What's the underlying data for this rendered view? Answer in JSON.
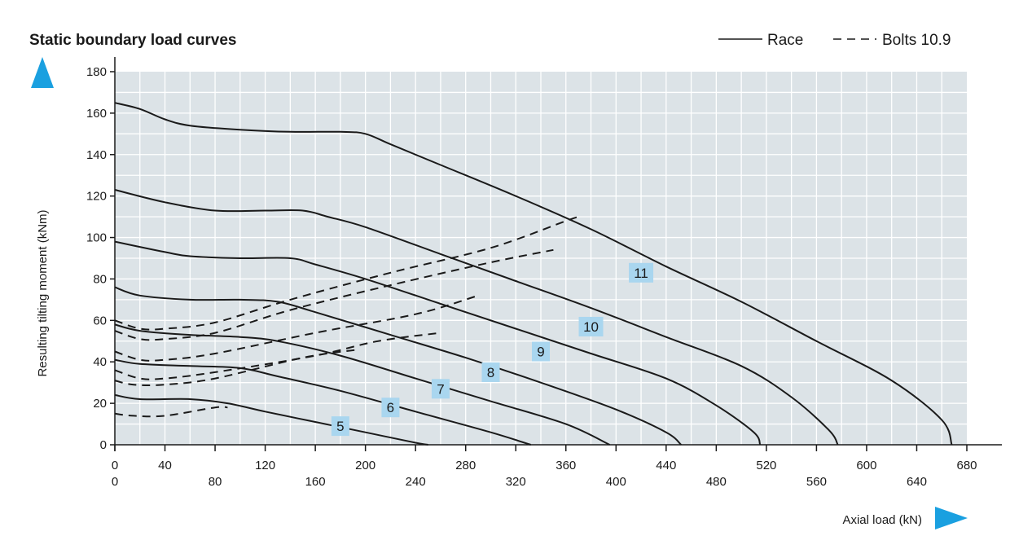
{
  "chart_data": {
    "type": "line",
    "title": "Static boundary load curves",
    "xlabel": "Axial load (kN)",
    "ylabel": "Resulting tilting moment (kNm)",
    "xlim": [
      0,
      680
    ],
    "ylim": [
      0,
      180
    ],
    "x_ticks_upper": [
      0,
      40,
      120,
      200,
      280,
      360,
      440,
      520,
      600,
      680
    ],
    "x_ticks_lower": [
      0,
      80,
      160,
      240,
      320,
      400,
      480,
      560,
      640
    ],
    "y_ticks": [
      0,
      20,
      40,
      60,
      80,
      100,
      120,
      140,
      160,
      180
    ],
    "grid": true,
    "legend_position": "top-right",
    "legend": [
      {
        "label": "Race",
        "style": "solid"
      },
      {
        "label": "Bolts 10.9",
        "style": "dashed"
      }
    ],
    "colors": {
      "plot_bg": "#dce3e7",
      "grid": "#ffffff",
      "line": "#1a1a1a",
      "accent": "#1aa0e0",
      "label_bg": "#a9d6ef"
    },
    "race_curves": [
      {
        "name": "5",
        "label_at": [
          180,
          9
        ],
        "points": [
          [
            0,
            24
          ],
          [
            20,
            22
          ],
          [
            60,
            22
          ],
          [
            90,
            20
          ],
          [
            120,
            16
          ],
          [
            160,
            11
          ],
          [
            200,
            6
          ],
          [
            240,
            1
          ],
          [
            250,
            0
          ]
        ]
      },
      {
        "name": "6",
        "label_at": [
          220,
          18
        ],
        "points": [
          [
            0,
            41
          ],
          [
            20,
            39
          ],
          [
            60,
            38
          ],
          [
            100,
            37
          ],
          [
            130,
            33
          ],
          [
            180,
            26
          ],
          [
            240,
            16
          ],
          [
            300,
            6
          ],
          [
            332,
            0
          ]
        ]
      },
      {
        "name": "7",
        "label_at": [
          260,
          27
        ],
        "points": [
          [
            0,
            58
          ],
          [
            20,
            55
          ],
          [
            60,
            53
          ],
          [
            100,
            52
          ],
          [
            130,
            50
          ],
          [
            180,
            43
          ],
          [
            240,
            32
          ],
          [
            300,
            21
          ],
          [
            360,
            10
          ],
          [
            395,
            0
          ]
        ]
      },
      {
        "name": "8",
        "label_at": [
          300,
          35
        ],
        "points": [
          [
            0,
            76
          ],
          [
            20,
            72
          ],
          [
            60,
            70
          ],
          [
            100,
            70
          ],
          [
            130,
            69
          ],
          [
            160,
            64
          ],
          [
            220,
            53
          ],
          [
            280,
            42
          ],
          [
            340,
            30
          ],
          [
            400,
            17
          ],
          [
            440,
            6
          ],
          [
            452,
            0
          ]
        ]
      },
      {
        "name": "9",
        "label_at": [
          340,
          45
        ],
        "points": [
          [
            0,
            98
          ],
          [
            40,
            93
          ],
          [
            60,
            91
          ],
          [
            100,
            90
          ],
          [
            140,
            90
          ],
          [
            160,
            87
          ],
          [
            200,
            80
          ],
          [
            260,
            68
          ],
          [
            320,
            56
          ],
          [
            380,
            44
          ],
          [
            440,
            32
          ],
          [
            480,
            19
          ],
          [
            510,
            6
          ],
          [
            515,
            0
          ]
        ]
      },
      {
        "name": "10",
        "label_at": [
          380,
          57
        ],
        "points": [
          [
            0,
            123
          ],
          [
            40,
            117
          ],
          [
            80,
            113
          ],
          [
            120,
            113
          ],
          [
            150,
            113
          ],
          [
            170,
            110
          ],
          [
            200,
            105
          ],
          [
            260,
            92
          ],
          [
            320,
            79
          ],
          [
            380,
            66
          ],
          [
            440,
            52
          ],
          [
            500,
            38
          ],
          [
            540,
            23
          ],
          [
            570,
            7
          ],
          [
            577,
            0
          ]
        ]
      },
      {
        "name": "11",
        "label_at": [
          420,
          83
        ],
        "points": [
          [
            0,
            165
          ],
          [
            20,
            162
          ],
          [
            40,
            157
          ],
          [
            60,
            154
          ],
          [
            100,
            152
          ],
          [
            140,
            151
          ],
          [
            180,
            151
          ],
          [
            200,
            150
          ],
          [
            220,
            145
          ],
          [
            260,
            135
          ],
          [
            320,
            120
          ],
          [
            380,
            104
          ],
          [
            440,
            86
          ],
          [
            500,
            69
          ],
          [
            560,
            50
          ],
          [
            620,
            31
          ],
          [
            660,
            12
          ],
          [
            668,
            0
          ]
        ]
      }
    ],
    "bolt_curves": [
      {
        "name": "5",
        "points": [
          [
            0,
            15
          ],
          [
            15,
            14
          ],
          [
            40,
            14
          ],
          [
            80,
            18
          ],
          [
            90,
            18
          ]
        ]
      },
      {
        "name": "6",
        "points": [
          [
            0,
            31
          ],
          [
            15,
            29
          ],
          [
            40,
            29
          ],
          [
            80,
            32
          ],
          [
            150,
            42
          ],
          [
            195,
            46
          ]
        ]
      },
      {
        "name": "7",
        "points": [
          [
            0,
            36
          ],
          [
            20,
            32
          ],
          [
            40,
            32
          ],
          [
            80,
            35
          ],
          [
            160,
            43
          ],
          [
            210,
            50
          ],
          [
            260,
            54
          ]
        ]
      },
      {
        "name": "8",
        "points": [
          [
            0,
            45
          ],
          [
            20,
            41
          ],
          [
            40,
            41
          ],
          [
            80,
            44
          ],
          [
            160,
            54
          ],
          [
            240,
            63
          ],
          [
            290,
            72
          ]
        ]
      },
      {
        "name": "9",
        "points": [
          [
            0,
            55
          ],
          [
            20,
            51
          ],
          [
            40,
            51
          ],
          [
            80,
            54
          ],
          [
            140,
            65
          ],
          [
            220,
            77
          ],
          [
            300,
            88
          ],
          [
            350,
            94
          ]
        ]
      },
      {
        "name": "10",
        "points": [
          [
            0,
            60
          ],
          [
            20,
            56
          ],
          [
            40,
            56
          ],
          [
            80,
            59
          ],
          [
            140,
            70
          ],
          [
            220,
            83
          ],
          [
            300,
            95
          ],
          [
            360,
            108
          ],
          [
            370,
            110
          ]
        ]
      }
    ]
  }
}
